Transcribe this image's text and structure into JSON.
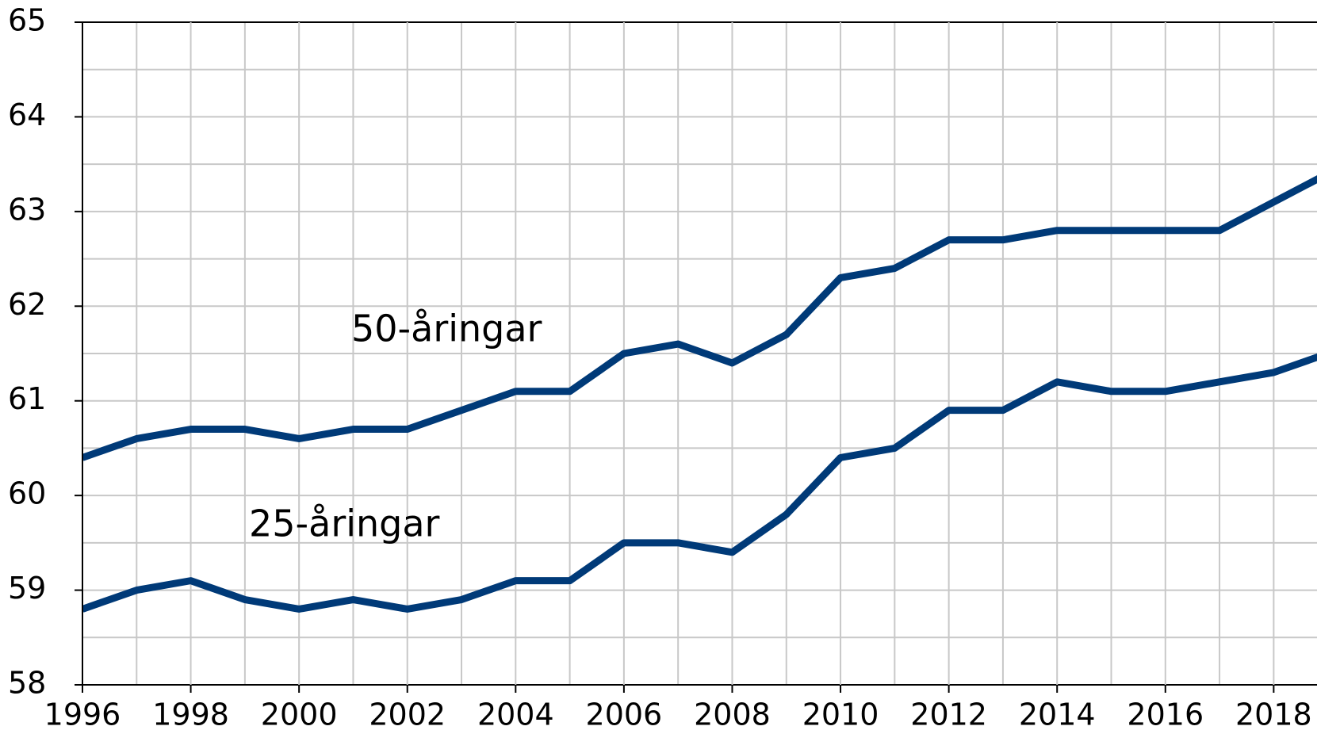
{
  "chart_data": {
    "type": "line",
    "x": [
      1996,
      1997,
      1998,
      1999,
      2000,
      2001,
      2002,
      2003,
      2004,
      2005,
      2006,
      2007,
      2008,
      2009,
      2010,
      2011,
      2012,
      2013,
      2014,
      2015,
      2016,
      2017,
      2018,
      2019
    ],
    "series": [
      {
        "name": "50-åringar",
        "color": "#003a78",
        "values": [
          60.4,
          60.6,
          60.7,
          60.7,
          60.6,
          60.7,
          60.7,
          60.9,
          61.1,
          61.1,
          61.5,
          61.6,
          61.4,
          61.7,
          62.3,
          62.4,
          62.7,
          62.7,
          62.8,
          62.8,
          62.8,
          62.8,
          63.1,
          63.4
        ]
      },
      {
        "name": "25-åringar",
        "color": "#003a78",
        "values": [
          58.8,
          59.0,
          59.1,
          58.9,
          58.8,
          58.9,
          58.8,
          58.9,
          59.1,
          59.1,
          59.5,
          59.5,
          59.4,
          59.8,
          60.4,
          60.5,
          60.9,
          60.9,
          61.2,
          61.1,
          61.1,
          61.2,
          61.3,
          61.5
        ]
      }
    ],
    "xlim": [
      1996,
      2018.8
    ],
    "xticks": [
      1996,
      1998,
      2000,
      2002,
      2004,
      2006,
      2008,
      2010,
      2012,
      2014,
      2016,
      2018
    ],
    "xminor": [
      1997,
      1999,
      2001,
      2003,
      2005,
      2007,
      2009,
      2011,
      2013,
      2015,
      2017
    ],
    "ylim": [
      58,
      65
    ],
    "yticks": [
      58,
      59,
      60,
      61,
      62,
      63,
      64,
      65
    ],
    "yminor": [
      58.5,
      59.5,
      60.5,
      61.5,
      62.5,
      63.5,
      64.5
    ],
    "grid": true
  }
}
